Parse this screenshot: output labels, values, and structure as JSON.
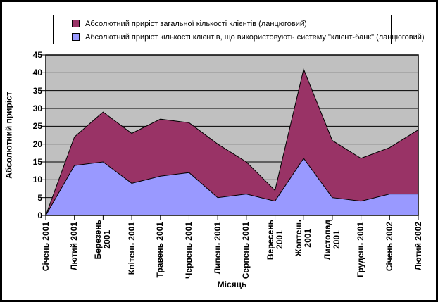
{
  "chart_data": {
    "type": "area",
    "legend_position": "top",
    "plot_background": "#C0C0C0",
    "grid": "horizontal",
    "axis_color": "#000000",
    "categories": [
      "Січень 2001",
      "Лютий 2001",
      "Березень\n2001",
      "Квітень 2001",
      "Травень 2001",
      "Червень 2001",
      "Липень 2001",
      "Серпень 2001",
      "Вересень\n2001",
      "Жовтень\n2001",
      "Листопад\n2001",
      "Грудень 2001",
      "Січень 2002",
      "Лютий 2002"
    ],
    "series": [
      {
        "name": "Абсолютний приріст загальної кількості клієнтів (ланцюговий)",
        "color": "#993366",
        "values": [
          0,
          22,
          29,
          23,
          27,
          26,
          20,
          15,
          7,
          41,
          21,
          16,
          19,
          24
        ]
      },
      {
        "name": "Абсолютний приріст кількості клієнтів, що використовують систему \"клієнт-банк\" (ланцюговий)",
        "color": "#9999FF",
        "values": [
          0,
          14,
          15,
          9,
          11,
          12,
          5,
          6,
          4,
          16,
          5,
          4,
          6,
          6
        ]
      }
    ],
    "xlabel": "Місяць",
    "ylabel": "Абсолютний приріст",
    "ylim": [
      0,
      45
    ],
    "ytick_step": 5
  }
}
